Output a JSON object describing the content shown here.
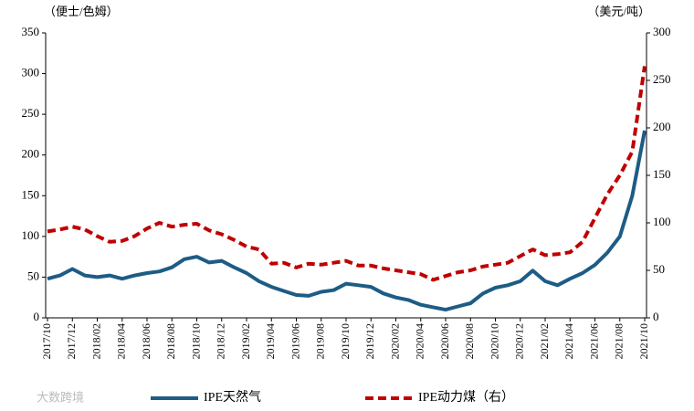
{
  "chart_data": {
    "type": "line",
    "ylabel": "（便士/色姆）",
    "y2label": "（美元/吨）",
    "watermark": "大数跨境",
    "categories": [
      "2017/10",
      null,
      "2017/12",
      null,
      "2018/02",
      null,
      "2018/04",
      null,
      "2018/06",
      null,
      "2018/08",
      null,
      "2018/10",
      null,
      "2018/12",
      null,
      "2019/02",
      null,
      "2019/04",
      null,
      "2019/06",
      null,
      "2019/08",
      null,
      "2019/10",
      null,
      "2019/12",
      null,
      "2020/02",
      null,
      "2020/04",
      null,
      "2020/06",
      null,
      "2020/08",
      null,
      "2020/10",
      null,
      "2020/12",
      null,
      "2021/02",
      null,
      "2021/04",
      null,
      "2021/06",
      null,
      "2021/08",
      null,
      "2021/10"
    ],
    "series": [
      {
        "name": "IPE天然气",
        "color": "#1d5c85",
        "dash": false,
        "values": [
          48,
          52,
          60,
          52,
          50,
          52,
          48,
          52,
          55,
          57,
          62,
          72,
          75,
          68,
          70,
          62,
          55,
          45,
          38,
          33,
          28,
          27,
          32,
          34,
          42,
          40,
          38,
          30,
          25,
          22,
          16,
          13,
          10,
          14,
          18,
          30,
          37,
          40,
          45,
          58,
          45,
          40,
          48,
          55,
          65,
          80,
          100,
          150,
          230
        ]
      },
      {
        "name": "IPE动力煤（右）",
        "color": "#c00000",
        "dash": true,
        "axis": "y2",
        "values": [
          91,
          93,
          96,
          93,
          86,
          80,
          81,
          86,
          94,
          100,
          96,
          98,
          99,
          92,
          88,
          82,
          75,
          72,
          57,
          58,
          53,
          57,
          56,
          58,
          60,
          55,
          55,
          52,
          50,
          48,
          46,
          40,
          44,
          48,
          50,
          54,
          56,
          58,
          65,
          72,
          66,
          67,
          69,
          80,
          105,
          130,
          150,
          175,
          265
        ]
      }
    ],
    "ylim": [
      0,
      350
    ],
    "yticks": [
      0,
      50,
      100,
      150,
      200,
      250,
      300,
      350
    ],
    "y2lim": [
      0,
      300
    ],
    "y2ticks": [
      0,
      50,
      100,
      150,
      200,
      250,
      300
    ],
    "legend": "bottom"
  }
}
